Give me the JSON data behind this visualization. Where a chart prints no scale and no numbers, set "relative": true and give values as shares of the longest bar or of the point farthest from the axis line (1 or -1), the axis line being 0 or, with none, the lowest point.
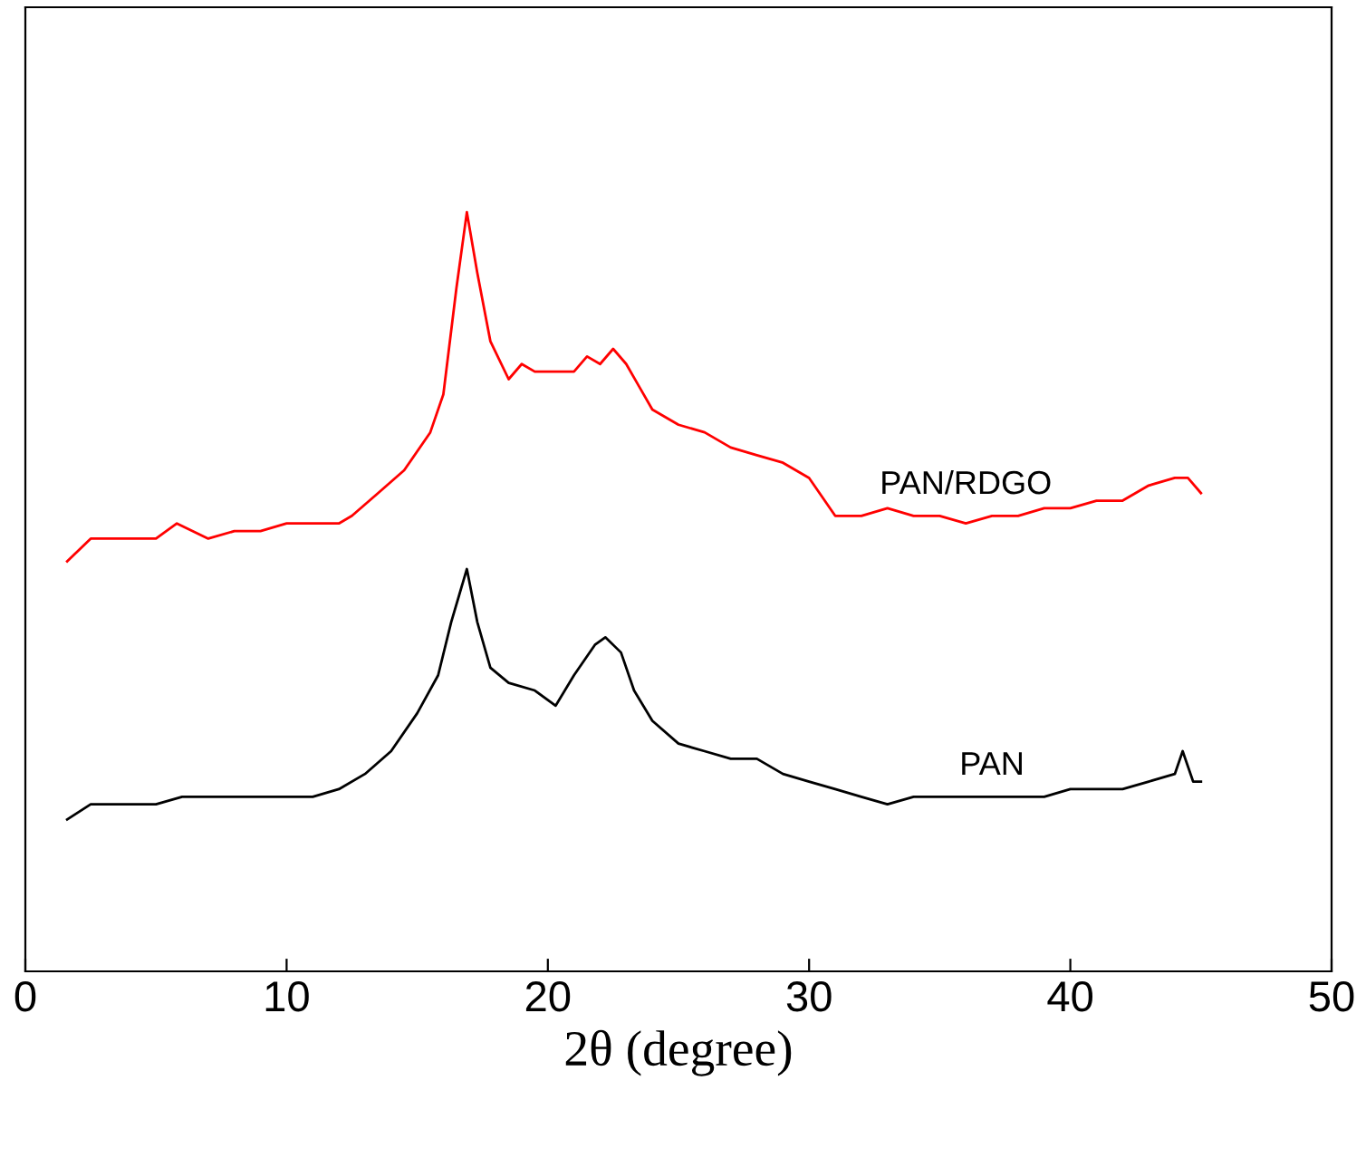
{
  "chart_data": {
    "type": "line",
    "relative": true,
    "xlabel": "2θ (degree)",
    "xlim": [
      0,
      50
    ],
    "xticks": [
      0,
      10,
      20,
      30,
      40,
      50
    ],
    "grid": false,
    "legend": false,
    "tick_labels": "x",
    "series": [
      {
        "name": "PAN/RDGO",
        "color": "#ff0000",
        "x": [
          1.6,
          2.5,
          3,
          4,
          5,
          5.8,
          7,
          8,
          9,
          10,
          11,
          12,
          12.5,
          13.5,
          14.5,
          15.5,
          16,
          16.5,
          16.9,
          17.3,
          17.8,
          18.5,
          19,
          19.5,
          20.5,
          21,
          21.5,
          22,
          22.5,
          23,
          23.5,
          24,
          25,
          26,
          27,
          28,
          29,
          30,
          31,
          32,
          33,
          34,
          35,
          36,
          37,
          38,
          39,
          40,
          41,
          42,
          43,
          44,
          44.5,
          45
        ],
        "values": [
          0.54,
          0.57,
          0.57,
          0.57,
          0.57,
          0.59,
          0.57,
          0.58,
          0.58,
          0.59,
          0.59,
          0.59,
          0.6,
          0.63,
          0.66,
          0.71,
          0.76,
          0.9,
          1.0,
          0.92,
          0.83,
          0.78,
          0.8,
          0.79,
          0.79,
          0.79,
          0.81,
          0.8,
          0.82,
          0.8,
          0.77,
          0.74,
          0.72,
          0.71,
          0.69,
          0.68,
          0.67,
          0.65,
          0.6,
          0.6,
          0.61,
          0.6,
          0.6,
          0.59,
          0.6,
          0.6,
          0.61,
          0.61,
          0.62,
          0.62,
          0.64,
          0.65,
          0.65,
          0.63
        ]
      },
      {
        "name": "PAN",
        "color": "#000000",
        "x": [
          1.6,
          2.5,
          3,
          4,
          5,
          6,
          7,
          8,
          9,
          10,
          11,
          12,
          13,
          14,
          15,
          15.8,
          16.3,
          16.9,
          17.3,
          17.8,
          18.5,
          19.5,
          20.3,
          21,
          21.8,
          22.2,
          22.8,
          23.3,
          24,
          25,
          26,
          27,
          28,
          29,
          30,
          31,
          32,
          33,
          34,
          35,
          36,
          37,
          38,
          39,
          40,
          41,
          42,
          43,
          44,
          44.3,
          44.7,
          45
        ],
        "values": [
          0.2,
          0.22,
          0.22,
          0.22,
          0.22,
          0.23,
          0.23,
          0.23,
          0.23,
          0.23,
          0.23,
          0.24,
          0.26,
          0.29,
          0.34,
          0.39,
          0.46,
          0.53,
          0.46,
          0.4,
          0.38,
          0.37,
          0.35,
          0.39,
          0.43,
          0.44,
          0.42,
          0.37,
          0.33,
          0.3,
          0.29,
          0.28,
          0.28,
          0.26,
          0.25,
          0.24,
          0.23,
          0.22,
          0.23,
          0.23,
          0.23,
          0.23,
          0.23,
          0.23,
          0.24,
          0.24,
          0.24,
          0.25,
          0.26,
          0.29,
          0.25,
          0.25
        ]
      }
    ]
  }
}
